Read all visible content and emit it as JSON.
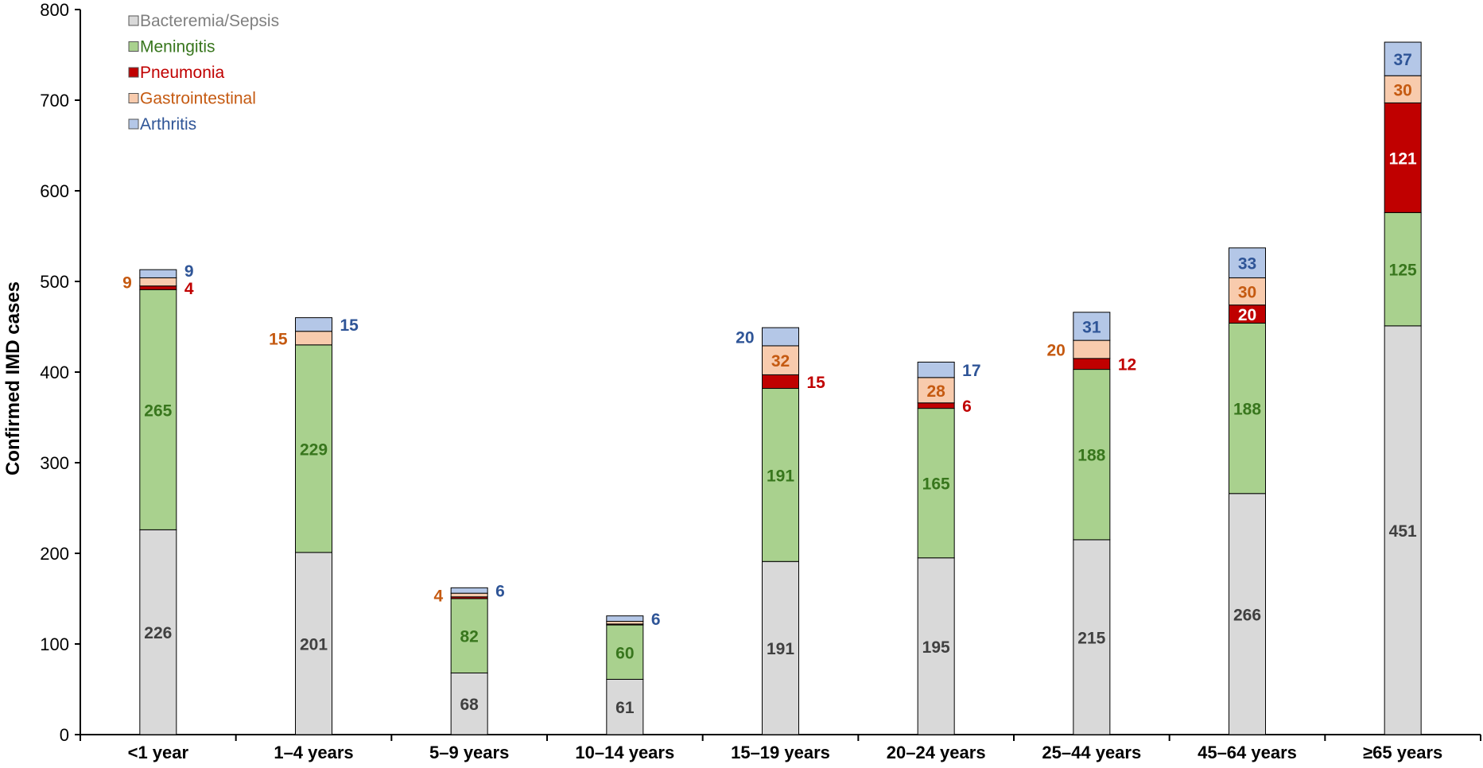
{
  "chart_data": {
    "type": "bar",
    "stacked": true,
    "ylabel": "Confirmed IMD cases",
    "xlabel": "",
    "ylim": [
      0,
      800
    ],
    "yticks": [
      0,
      100,
      200,
      300,
      400,
      500,
      600,
      700,
      800
    ],
    "categories": [
      "<1 year",
      "1–4 years",
      "5–9 years",
      "10–14 years",
      "15–19 years",
      "20–24 years",
      "25–44 years",
      "45–64 years",
      "≥65 years"
    ],
    "series": [
      {
        "name": "Bacteremia/Sepsis",
        "color": "#d9d9d9",
        "label_color": "#404040",
        "values": [
          226,
          201,
          68,
          61,
          191,
          195,
          215,
          266,
          451
        ]
      },
      {
        "name": "Meningitis",
        "color": "#a9d18e",
        "label_color": "#38761d",
        "values": [
          265,
          229,
          82,
          60,
          191,
          165,
          188,
          188,
          125
        ]
      },
      {
        "name": "Pneumonia",
        "color": "#c00000",
        "label_color": "#c00000",
        "values": [
          4,
          0,
          2,
          1,
          15,
          6,
          12,
          20,
          121
        ]
      },
      {
        "name": "Gastrointestinal",
        "color": "#f8cbad",
        "label_color": "#c55a11",
        "values": [
          9,
          15,
          4,
          3,
          32,
          28,
          20,
          30,
          30
        ]
      },
      {
        "name": "Arthritis",
        "color": "#b4c7e7",
        "label_color": "#2f5597",
        "values": [
          9,
          15,
          6,
          6,
          20,
          17,
          31,
          33,
          37
        ]
      }
    ],
    "data_labels": [
      {
        "category": "<1 year",
        "series": "Bacteremia/Sepsis",
        "text": "226",
        "placement": "inside"
      },
      {
        "category": "<1 year",
        "series": "Meningitis",
        "text": "265",
        "placement": "inside"
      },
      {
        "category": "<1 year",
        "series": "Pneumonia",
        "text": "4",
        "placement": "right"
      },
      {
        "category": "<1 year",
        "series": "Gastrointestinal",
        "text": "9",
        "placement": "left"
      },
      {
        "category": "<1 year",
        "series": "Arthritis",
        "text": "9",
        "placement": "right"
      },
      {
        "category": "1–4 years",
        "series": "Bacteremia/Sepsis",
        "text": "201",
        "placement": "inside"
      },
      {
        "category": "1–4 years",
        "series": "Meningitis",
        "text": "229",
        "placement": "inside"
      },
      {
        "category": "1–4 years",
        "series": "Gastrointestinal",
        "text": "15",
        "placement": "left"
      },
      {
        "category": "1–4 years",
        "series": "Arthritis",
        "text": "15",
        "placement": "right"
      },
      {
        "category": "5–9 years",
        "series": "Bacteremia/Sepsis",
        "text": "68",
        "placement": "inside"
      },
      {
        "category": "5–9 years",
        "series": "Meningitis",
        "text": "82",
        "placement": "inside"
      },
      {
        "category": "5–9 years",
        "series": "Gastrointestinal",
        "text": "4",
        "placement": "left"
      },
      {
        "category": "5–9 years",
        "series": "Arthritis",
        "text": "6",
        "placement": "right"
      },
      {
        "category": "10–14 years",
        "series": "Bacteremia/Sepsis",
        "text": "61",
        "placement": "inside"
      },
      {
        "category": "10–14 years",
        "series": "Meningitis",
        "text": "60",
        "placement": "inside"
      },
      {
        "category": "10–14 years",
        "series": "Arthritis",
        "text": "6",
        "placement": "right"
      },
      {
        "category": "15–19 years",
        "series": "Bacteremia/Sepsis",
        "text": "191",
        "placement": "inside"
      },
      {
        "category": "15–19 years",
        "series": "Meningitis",
        "text": "191",
        "placement": "inside"
      },
      {
        "category": "15–19 years",
        "series": "Pneumonia",
        "text": "15",
        "placement": "right"
      },
      {
        "category": "15–19 years",
        "series": "Gastrointestinal",
        "text": "32",
        "placement": "inside"
      },
      {
        "category": "15–19 years",
        "series": "Arthritis",
        "text": "20",
        "placement": "left"
      },
      {
        "category": "20–24 years",
        "series": "Bacteremia/Sepsis",
        "text": "195",
        "placement": "inside"
      },
      {
        "category": "20–24 years",
        "series": "Meningitis",
        "text": "165",
        "placement": "inside"
      },
      {
        "category": "20–24 years",
        "series": "Pneumonia",
        "text": "6",
        "placement": "right"
      },
      {
        "category": "20–24 years",
        "series": "Gastrointestinal",
        "text": "28",
        "placement": "inside"
      },
      {
        "category": "20–24 years",
        "series": "Arthritis",
        "text": "17",
        "placement": "right"
      },
      {
        "category": "25–44 years",
        "series": "Bacteremia/Sepsis",
        "text": "215",
        "placement": "inside"
      },
      {
        "category": "25–44 years",
        "series": "Meningitis",
        "text": "188",
        "placement": "inside"
      },
      {
        "category": "25–44 years",
        "series": "Pneumonia",
        "text": "12",
        "placement": "right"
      },
      {
        "category": "25–44 years",
        "series": "Gastrointestinal",
        "text": "20",
        "placement": "left"
      },
      {
        "category": "25–44 years",
        "series": "Arthritis",
        "text": "31",
        "placement": "inside"
      },
      {
        "category": "45–64 years",
        "series": "Bacteremia/Sepsis",
        "text": "266",
        "placement": "inside"
      },
      {
        "category": "45–64 years",
        "series": "Meningitis",
        "text": "188",
        "placement": "inside"
      },
      {
        "category": "45–64 years",
        "series": "Pneumonia",
        "text": "20",
        "placement": "inside"
      },
      {
        "category": "45–64 years",
        "series": "Gastrointestinal",
        "text": "30",
        "placement": "inside"
      },
      {
        "category": "45–64 years",
        "series": "Arthritis",
        "text": "33",
        "placement": "inside"
      },
      {
        "category": "≥65 years",
        "series": "Bacteremia/Sepsis",
        "text": "451",
        "placement": "inside"
      },
      {
        "category": "≥65 years",
        "series": "Meningitis",
        "text": "125",
        "placement": "inside"
      },
      {
        "category": "≥65 years",
        "series": "Pneumonia",
        "text": "121",
        "placement": "inside"
      },
      {
        "category": "≥65 years",
        "series": "Gastrointestinal",
        "text": "30",
        "placement": "inside"
      },
      {
        "category": "≥65 years",
        "series": "Arthritis",
        "text": "37",
        "placement": "inside"
      }
    ],
    "inside_label_colors": {
      "Pneumonia": "#ffffff"
    },
    "legend_position": "top-left",
    "grid": false
  }
}
